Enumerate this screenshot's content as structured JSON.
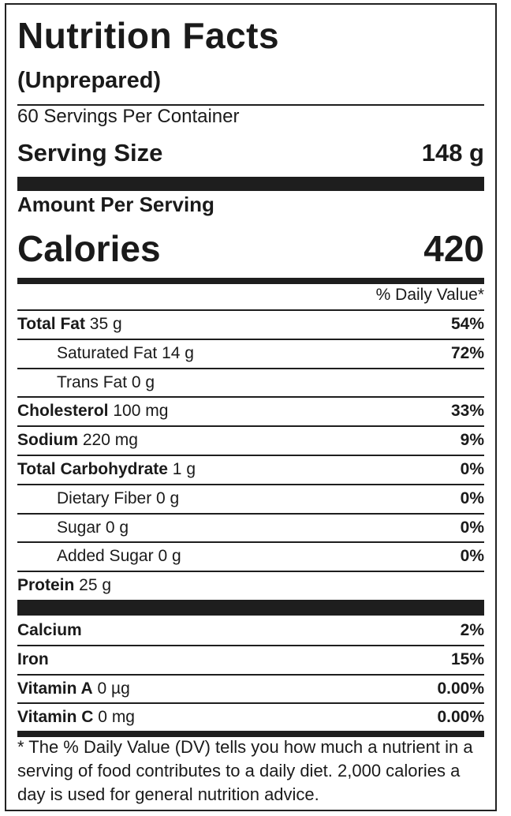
{
  "header": {
    "title": "Nutrition Facts",
    "subtitle": "(Unprepared)",
    "servings_per_container": "60 Servings Per Container",
    "serving_size_label": "Serving Size",
    "serving_size_value": "148 g",
    "amount_per_serving": "Amount Per Serving",
    "calories_label": "Calories",
    "calories_value": "420",
    "daily_value_header": "% Daily Value*"
  },
  "nutrients": [
    {
      "name": "Total Fat",
      "amount": " 35 g",
      "dv": "54%"
    },
    {
      "name": "Saturated Fat",
      "amount": " 14 g",
      "dv": "72%"
    },
    {
      "name": "Trans Fat",
      "amount": " 0 g",
      "dv": ""
    },
    {
      "name": "Cholesterol",
      "amount": " 100 mg",
      "dv": "33%"
    },
    {
      "name": "Sodium",
      "amount": " 220 mg",
      "dv": "9%"
    },
    {
      "name": "Total Carbohydrate",
      "amount": " 1 g",
      "dv": "0%"
    },
    {
      "name": "Dietary Fiber",
      "amount": " 0 g",
      "dv": "0%"
    },
    {
      "name": "Sugar",
      "amount": " 0 g",
      "dv": "0%"
    },
    {
      "name": "Added Sugar",
      "amount": " 0 g",
      "dv": "0%"
    },
    {
      "name": "Protein",
      "amount": " 25 g",
      "dv": ""
    }
  ],
  "vitamins": [
    {
      "name": "Calcium",
      "amount": "",
      "dv": "2%"
    },
    {
      "name": "Iron",
      "amount": "",
      "dv": "15%"
    },
    {
      "name": "Vitamin A",
      "amount": " 0 µg",
      "dv": "0.00%"
    },
    {
      "name": "Vitamin C",
      "amount": " 0 mg",
      "dv": "0.00%"
    }
  ],
  "footnote": "* The % Daily Value (DV) tells you how much a nutrient in a serving of food contributes to a daily diet. 2,000 calories a day is used for general nutrition advice."
}
